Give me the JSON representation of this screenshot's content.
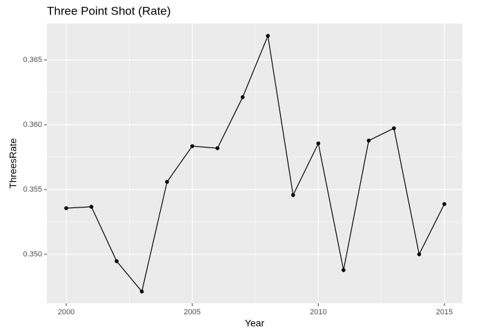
{
  "chart_data": {
    "type": "line",
    "title": "Three Point Shot (Rate)",
    "x_label": "Year",
    "y_label": "ThreesRate",
    "x": [
      2000,
      2001,
      2002,
      2003,
      2004,
      2005,
      2006,
      2007,
      2008,
      2009,
      2010,
      2011,
      2012,
      2013,
      2014,
      2015
    ],
    "series": [
      {
        "name": "ThreesRate",
        "color": "#000000",
        "values": [
          0.35356,
          0.35367,
          0.34947,
          0.34713,
          0.35559,
          0.35835,
          0.35819,
          0.36213,
          0.36686,
          0.35457,
          0.35856,
          0.34878,
          0.35878,
          0.35973,
          0.35,
          0.35388
        ]
      }
    ],
    "xlim": [
      1999.235,
      2015.71
    ],
    "ylim": [
      0.34622,
      0.36782
    ],
    "xticks": [
      2000,
      2005,
      2010,
      2015
    ],
    "yticks": [
      {
        "value": 0.35,
        "label": "0.350"
      },
      0.355,
      {
        "value": 0.36,
        "label": "0.360"
      },
      0.365
    ],
    "grid": true
  }
}
